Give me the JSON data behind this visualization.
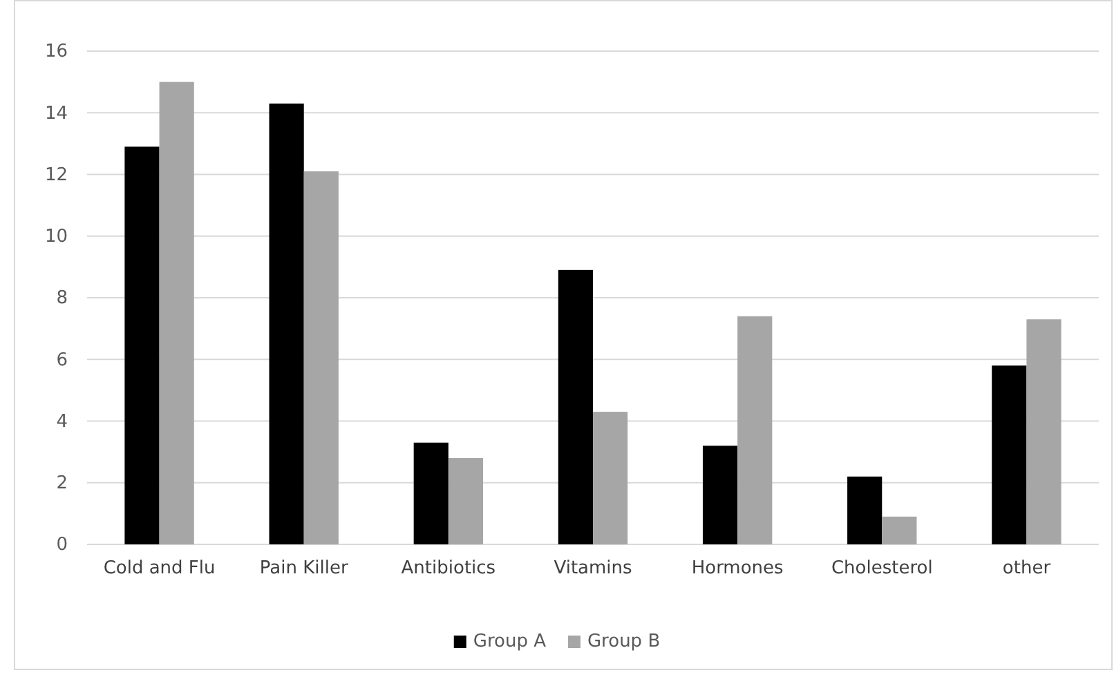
{
  "chart_data": {
    "type": "bar",
    "categories": [
      "Cold and Flu",
      "Pain Killer",
      "Antibiotics",
      "Vitamins",
      "Hormones",
      "Cholesterol",
      "other"
    ],
    "series": [
      {
        "name": "Group A",
        "color": "#000000",
        "values": [
          12.9,
          14.3,
          3.3,
          8.9,
          3.2,
          2.2,
          5.8
        ]
      },
      {
        "name": "Group B",
        "color": "#a6a6a6",
        "values": [
          15.0,
          12.1,
          2.8,
          4.3,
          7.4,
          0.9,
          7.3
        ]
      }
    ],
    "ylim": [
      0,
      16
    ],
    "yticks": [
      0,
      2,
      4,
      6,
      8,
      10,
      12,
      14,
      16
    ],
    "grid": "y",
    "legend": "bottom"
  }
}
